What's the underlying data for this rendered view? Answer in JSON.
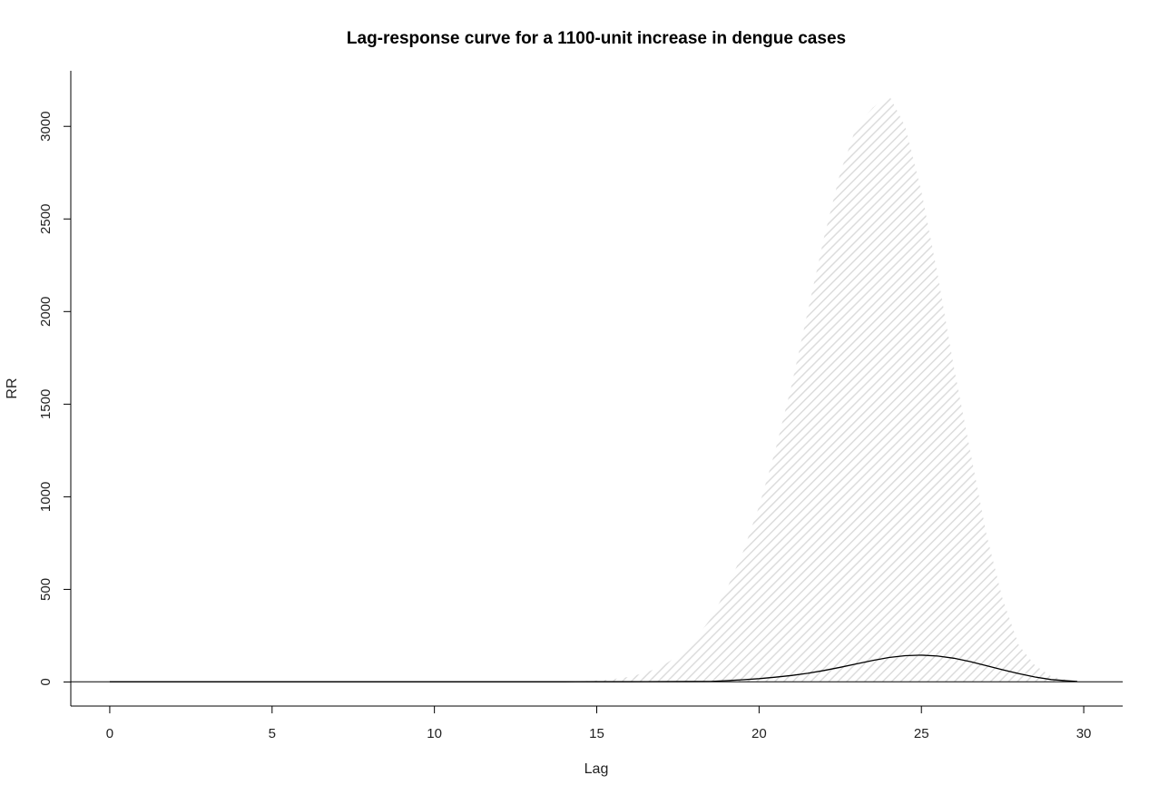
{
  "chart_data": {
    "type": "line",
    "title": "Lag-response curve for a 1100-unit increase in dengue cases",
    "xlabel": "Lag",
    "ylabel": "RR",
    "xlim": [
      -1.2,
      31.2
    ],
    "ylim": [
      -130,
      3300
    ],
    "x_ticks": [
      0,
      5,
      10,
      15,
      20,
      25,
      30
    ],
    "y_ticks": [
      0,
      500,
      1000,
      1500,
      2000,
      2500,
      3000
    ],
    "x_tick_labels": [
      "0",
      "5",
      "10",
      "15",
      "20",
      "25",
      "30"
    ],
    "y_tick_labels": [
      "0",
      "500",
      "1000",
      "1500",
      "2000",
      "2500",
      "3000"
    ],
    "reference_line_y": 1,
    "grid": false,
    "series": [
      {
        "kind": "estimate",
        "color": "#000000",
        "x": [
          0,
          2,
          4,
          6,
          8,
          10,
          12,
          14,
          15,
          16,
          16.5,
          18.5,
          19,
          19.5,
          20,
          20.5,
          21,
          21.5,
          22,
          22.5,
          23,
          23.5,
          24,
          24.5,
          25,
          25.5,
          26,
          26.5,
          27,
          27.5,
          28,
          28.5,
          29,
          29.5,
          29.8
        ],
        "y": [
          1,
          1,
          1,
          1,
          1,
          1,
          1,
          1,
          1.2,
          1.5,
          2,
          3,
          7,
          12,
          18,
          26,
          35,
          47,
          62,
          79,
          98,
          116,
          132,
          142,
          145,
          140,
          128,
          110,
          88,
          66,
          45,
          27,
          13,
          6,
          3
        ]
      },
      {
        "kind": "confidence-band",
        "color": "#e6e6e6",
        "x": [
          14,
          14.5,
          15,
          15.5,
          16,
          16.5,
          17,
          17.5,
          18,
          18.5,
          19,
          19.5,
          20,
          20.5,
          21,
          21.5,
          22,
          22.5,
          23,
          23.5,
          24,
          24.5,
          25,
          25.5,
          26,
          26.5,
          27,
          27.5,
          28,
          28.5,
          29,
          29.5,
          29.8
        ],
        "upper": [
          2,
          4,
          8,
          15,
          28,
          50,
          85,
          140,
          225,
          340,
          500,
          700,
          950,
          1250,
          1600,
          2000,
          2400,
          2750,
          3000,
          3100,
          3170,
          3000,
          2650,
          2200,
          1700,
          1250,
          800,
          450,
          200,
          90,
          30,
          10,
          3
        ],
        "lower": [
          0.5,
          0.5,
          0.5,
          0.5,
          0.5,
          0.5,
          0.5,
          0.5,
          0.5,
          0.5,
          0.5,
          1,
          1,
          1,
          1,
          1,
          1,
          1,
          1,
          1,
          1,
          1,
          1,
          1,
          1,
          1,
          1,
          1,
          1,
          1,
          0.5,
          0.5,
          0.5
        ]
      }
    ]
  }
}
